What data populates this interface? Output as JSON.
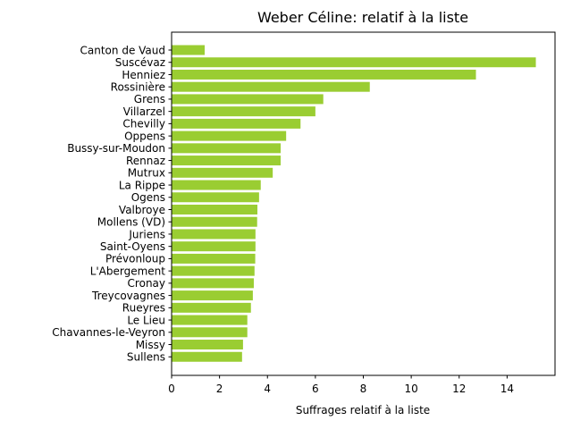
{
  "chart_data": {
    "type": "bar",
    "orientation": "horizontal",
    "title": "Weber Céline: relatif à la liste",
    "xlabel": "Suffrages relatif à la liste",
    "ylabel": "",
    "xlim": [
      0,
      16
    ],
    "xticks": [
      0,
      2,
      4,
      6,
      8,
      10,
      12,
      14
    ],
    "grid": false,
    "bar_color": "#9acd32",
    "categories": [
      "Canton de Vaud",
      "Suscévaz",
      "Henniez",
      "Rossinière",
      "Grens",
      "Villarzel",
      "Chevilly",
      "Oppens",
      "Bussy-sur-Moudon",
      "Rennaz",
      "Mutrux",
      "La Rippe",
      "Ogens",
      "Valbroye",
      "Mollens (VD)",
      "Juriens",
      "Saint-Oyens",
      "Prévonloup",
      "L'Abergement",
      "Cronay",
      "Treycovagnes",
      "Rueyres",
      "Le Lieu",
      "Chavannes-le-Veyron",
      "Missy",
      "Sullens"
    ],
    "values": [
      1.38,
      15.2,
      12.7,
      8.27,
      6.33,
      6.0,
      5.38,
      4.78,
      4.55,
      4.55,
      4.22,
      3.72,
      3.65,
      3.58,
      3.57,
      3.5,
      3.5,
      3.49,
      3.46,
      3.43,
      3.39,
      3.31,
      3.16,
      3.16,
      2.98,
      2.94
    ]
  }
}
